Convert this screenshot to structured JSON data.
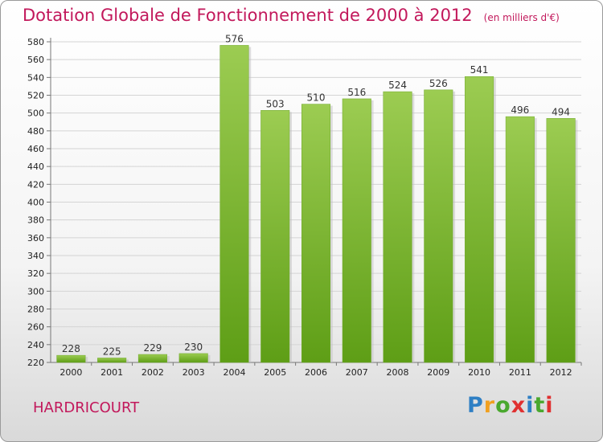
{
  "chart_data": {
    "type": "bar",
    "title": "Dotation Globale de Fonctionnement de 2000 à 2012",
    "unit": "(en milliers d'€)",
    "categories": [
      "2000",
      "2001",
      "2002",
      "2003",
      "2004",
      "2005",
      "2006",
      "2007",
      "2008",
      "2009",
      "2010",
      "2011",
      "2012"
    ],
    "values": [
      228,
      225,
      229,
      230,
      576,
      503,
      510,
      516,
      524,
      526,
      541,
      496,
      494
    ],
    "ylim": [
      220,
      580
    ],
    "ytick_step": 20,
    "grid": true,
    "bar_color_top": "#9ccc52",
    "bar_color_bottom": "#5e9e16"
  },
  "commune": "HARDRICOURT",
  "logo": {
    "letters": [
      "P",
      "r",
      "o",
      "x",
      "i",
      "t",
      "i"
    ],
    "colors": [
      "#2e7fc4",
      "#f0a020",
      "#4aa82e",
      "#e03030",
      "#2e7fc4",
      "#4aa82e",
      "#e03030"
    ]
  }
}
